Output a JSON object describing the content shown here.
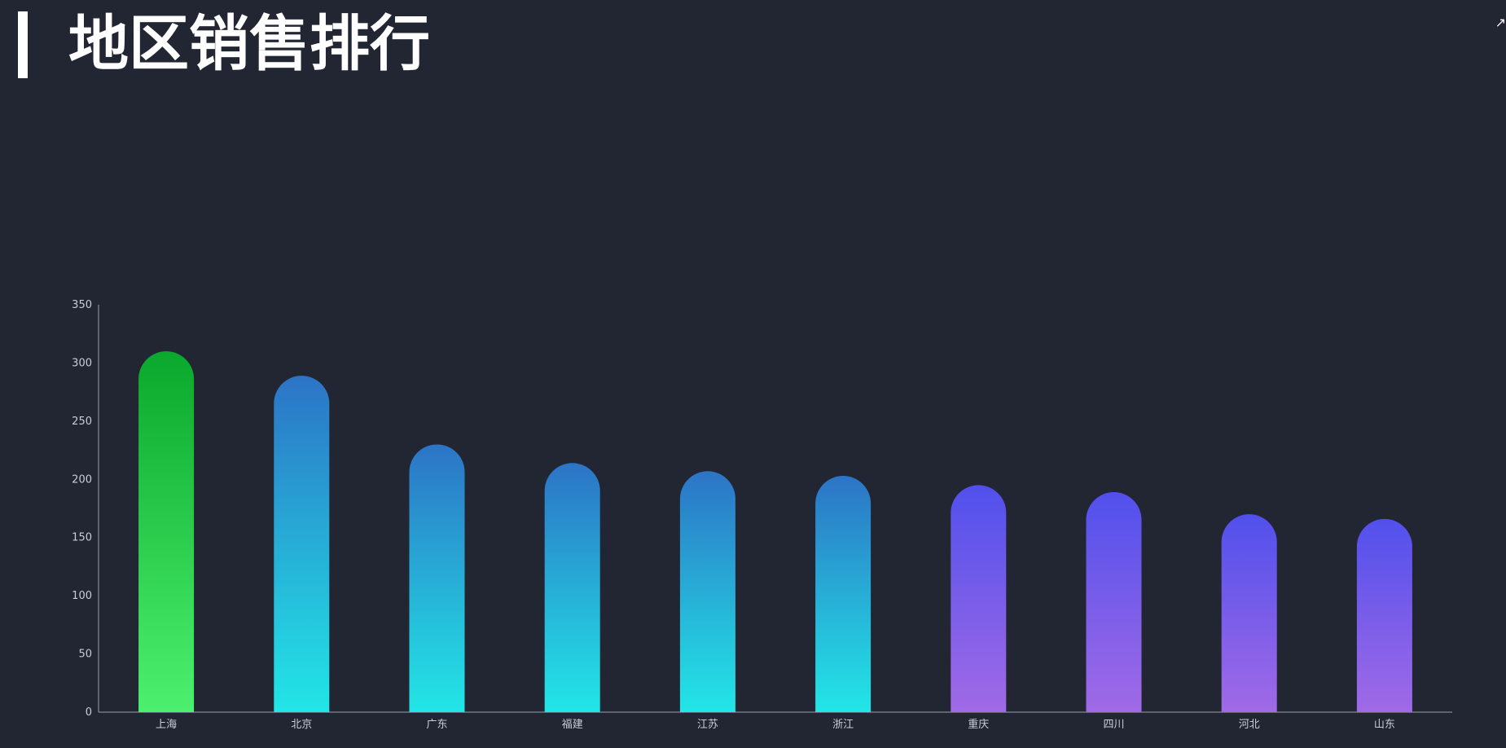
{
  "header": {
    "title": "地区销售排行",
    "corner_icon": "expand-icon"
  },
  "colors": {
    "background": "#222633",
    "axis": "#9aa0ad",
    "green_top": "#0aa82c",
    "green_bottom": "#4cf06e",
    "blue_top": "#2c74c6",
    "blue_bottom": "#22e6e6",
    "purple_top": "#5150ec",
    "purple_bottom": "#a06ae6"
  },
  "chart_data": {
    "type": "bar",
    "title": "",
    "xlabel": "",
    "ylabel": "",
    "ylim": [
      0,
      350
    ],
    "yticks": [
      0,
      50,
      100,
      150,
      200,
      250,
      300,
      350
    ],
    "categories": [
      "上海",
      "北京",
      "广东",
      "福建",
      "江苏",
      "浙江",
      "重庆",
      "四川",
      "河北",
      "山东"
    ],
    "values": [
      310,
      289,
      230,
      214,
      207,
      203,
      195,
      189,
      170,
      166
    ],
    "bar_color_groups": [
      "green",
      "blue",
      "blue",
      "blue",
      "blue",
      "blue",
      "purple",
      "purple",
      "purple",
      "purple"
    ],
    "grid": false,
    "bar_style": "rounded-top gradient"
  }
}
